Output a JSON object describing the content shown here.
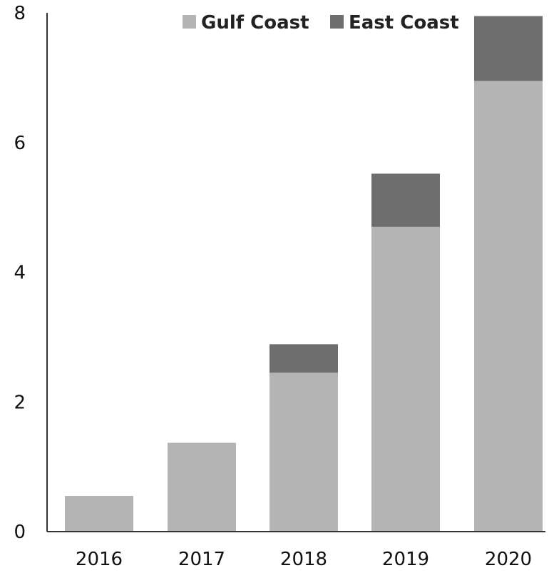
{
  "chart_data": {
    "type": "bar",
    "stacked": true,
    "title": "",
    "xlabel": "",
    "ylabel": "",
    "categories": [
      "2016",
      "2017",
      "2018",
      "2019",
      "2020"
    ],
    "series": [
      {
        "name": "Gulf Coast",
        "color": "#b4b4b4",
        "values": [
          0.55,
          1.37,
          2.45,
          4.7,
          6.95
        ]
      },
      {
        "name": "East Coast",
        "color": "#6e6e6e",
        "values": [
          0,
          0,
          0.44,
          0.82,
          1.0
        ]
      }
    ],
    "ylim": [
      0,
      8
    ],
    "yticks": [
      "0",
      "2",
      "4",
      "6",
      "8"
    ],
    "grid": false,
    "legend_position": "top"
  }
}
